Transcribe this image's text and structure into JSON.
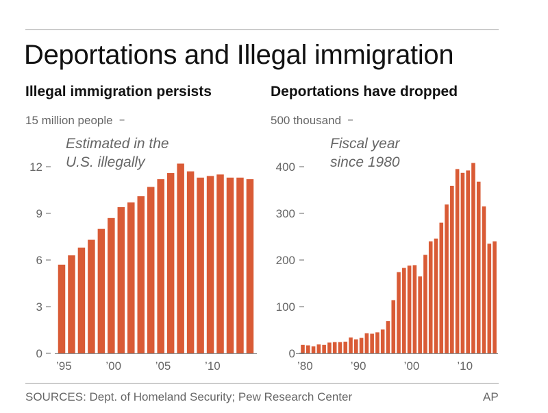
{
  "title": "Deportations and Illegal immigration",
  "colors": {
    "bar": "#d95b36",
    "axis": "#8a8a8a",
    "text": "#111111",
    "muted": "#666666",
    "rule": "#9a9a9a"
  },
  "footer": {
    "sources": "SOURCES: Dept. of Homeland Security; Pew Research Center",
    "credit": "AP"
  },
  "chart_data": [
    {
      "type": "bar",
      "title": "Illegal immigration persists",
      "ylabel": "15 million people",
      "annotation": [
        "Estimated in the",
        "U.S. illegally"
      ],
      "ylim": [
        0,
        15
      ],
      "yticks": [
        0,
        3,
        6,
        9,
        12
      ],
      "categories": [
        1995,
        1996,
        1997,
        1998,
        1999,
        2000,
        2001,
        2002,
        2003,
        2004,
        2005,
        2006,
        2007,
        2008,
        2009,
        2010,
        2011,
        2012,
        2013,
        2014
      ],
      "xtick_labels": [
        {
          "year": 1995,
          "label": "’95"
        },
        {
          "year": 2000,
          "label": "’00"
        },
        {
          "year": 2005,
          "label": "’05"
        },
        {
          "year": 2010,
          "label": "’10"
        }
      ],
      "values": [
        5.7,
        6.3,
        6.8,
        7.3,
        8.0,
        8.7,
        9.4,
        9.7,
        10.1,
        10.7,
        11.2,
        11.6,
        12.2,
        11.7,
        11.3,
        11.4,
        11.5,
        11.3,
        11.3,
        11.2
      ]
    },
    {
      "type": "bar",
      "title": "Deportations have dropped",
      "ylabel": "500 thousand",
      "annotation": [
        "Fiscal year",
        "since 1980"
      ],
      "ylim": [
        0,
        500
      ],
      "yticks": [
        0,
        100,
        200,
        300,
        400
      ],
      "categories": [
        1980,
        1981,
        1982,
        1983,
        1984,
        1985,
        1986,
        1987,
        1988,
        1989,
        1990,
        1991,
        1992,
        1993,
        1994,
        1995,
        1996,
        1997,
        1998,
        1999,
        2000,
        2001,
        2002,
        2003,
        2004,
        2005,
        2006,
        2007,
        2008,
        2009,
        2010,
        2011,
        2012,
        2013,
        2014,
        2015,
        2016
      ],
      "xtick_labels": [
        {
          "year": 1980,
          "label": "’80"
        },
        {
          "year": 1990,
          "label": "’90"
        },
        {
          "year": 2000,
          "label": "’00"
        },
        {
          "year": 2010,
          "label": "’10"
        }
      ],
      "values": [
        18,
        17,
        15,
        19,
        18,
        23,
        24,
        24,
        25,
        34,
        30,
        33,
        43,
        42,
        45,
        51,
        69,
        114,
        174,
        183,
        188,
        189,
        165,
        211,
        240,
        246,
        280,
        319,
        359,
        395,
        387,
        392,
        408,
        368,
        315,
        235,
        240
      ]
    }
  ]
}
